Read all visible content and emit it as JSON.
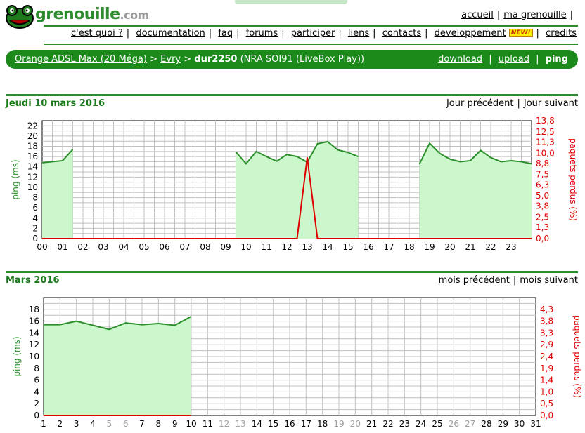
{
  "logo": {
    "name": "grenouille",
    "tld": ".com"
  },
  "top_nav": {
    "home": "accueil",
    "my_frog": "ma grenouille"
  },
  "menu": [
    "c'est quoi ?",
    "documentation",
    "faq",
    "forums",
    "participer",
    "liens",
    "contacts",
    "developpement",
    "credits"
  ],
  "new_badge": "NEW!",
  "breadcrumb": {
    "isp": "Orange ADSL Max (20 Méga)",
    "city": "Evry",
    "user": "dur2250",
    "details": "(NRA SOI91 (LiveBox Play))",
    "links": {
      "download": "download",
      "upload": "upload",
      "ping": "ping"
    }
  },
  "day_section": {
    "title": "Jeudi 10 mars 2016",
    "prev": "Jour précédent",
    "next": "Jour suivant"
  },
  "month_section": {
    "title": "Mars 2016",
    "prev": "mois précédent",
    "next": "mois suivant"
  },
  "colors": {
    "green_text": "#1b7a1b",
    "bar_green": "#1b8a1b",
    "line_green": "#2a8f2a",
    "fill_green": "#ccf7cc",
    "loss_red": "#e00000",
    "grid": "#c0c0c0"
  },
  "chart_data": [
    {
      "type": "area",
      "title": "Jeudi 10 mars 2016",
      "ylabel": "ping (ms)",
      "y2label": "paquets perdus (%)",
      "ylim": [
        0,
        23
      ],
      "y_ticks": [
        0,
        2,
        4,
        6,
        8,
        10,
        12,
        14,
        16,
        18,
        20,
        22
      ],
      "y2_ticks": [
        "0,0",
        "1,3",
        "2,5",
        "3,8",
        "5,0",
        "6,3",
        "7,5",
        "8,8",
        "10,0",
        "11,3",
        "12,5",
        "13,8"
      ],
      "x_ticks": [
        "00",
        "01",
        "02",
        "03",
        "04",
        "05",
        "06",
        "07",
        "08",
        "09",
        "10",
        "11",
        "12",
        "13",
        "14",
        "15",
        "16",
        "17",
        "18",
        "19",
        "20",
        "21",
        "22",
        "23"
      ],
      "grid": true,
      "series": [
        {
          "name": "ping (ms)",
          "segments": [
            [
              [
                0,
                14.8
              ],
              [
                0.5,
                15
              ],
              [
                1,
                15.2
              ],
              [
                1.5,
                17.4
              ]
            ],
            [
              [
                9.5,
                16.9
              ],
              [
                10,
                14.6
              ],
              [
                10.5,
                17
              ],
              [
                11,
                16
              ],
              [
                11.5,
                15.1
              ],
              [
                12,
                16.4
              ],
              [
                12.5,
                16
              ],
              [
                13,
                14.9
              ],
              [
                13.5,
                18.5
              ],
              [
                14,
                18.9
              ],
              [
                14.5,
                17.3
              ],
              [
                15,
                16.8
              ],
              [
                15.5,
                16
              ]
            ],
            [
              [
                18.5,
                14.5
              ],
              [
                19,
                18.6
              ],
              [
                19.5,
                16.6
              ],
              [
                20,
                15.5
              ],
              [
                20.5,
                15
              ],
              [
                21,
                15.2
              ],
              [
                21.5,
                17.2
              ],
              [
                22,
                15.8
              ],
              [
                22.5,
                15
              ],
              [
                23,
                15.2
              ],
              [
                23.5,
                15
              ],
              [
                24,
                14.6
              ]
            ]
          ]
        },
        {
          "name": "paquets perdus (%)",
          "points": [
            [
              0,
              0
            ],
            [
              12.5,
              0
            ],
            [
              13,
              9.5
            ],
            [
              13.5,
              0
            ],
            [
              24,
              0
            ]
          ],
          "y2lim": [
            0,
            13.8
          ]
        }
      ]
    },
    {
      "type": "area",
      "title": "Mars 2016",
      "ylabel": "ping (ms)",
      "y2label": "paquets perdus (%)",
      "ylim": [
        0,
        20
      ],
      "y_ticks": [
        0,
        2,
        4,
        6,
        8,
        10,
        12,
        14,
        16,
        18
      ],
      "y2_ticks": [
        "0,0",
        "0,5",
        "1,0",
        "1,4",
        "1,9",
        "2,4",
        "2,9",
        "3,3",
        "3,8",
        "4,3"
      ],
      "x_ticks": [
        "1",
        "2",
        "3",
        "4",
        "5",
        "6",
        "7",
        "8",
        "9",
        "10",
        "11",
        "12",
        "13",
        "14",
        "15",
        "16",
        "17",
        "18",
        "19",
        "20",
        "21",
        "22",
        "23",
        "24",
        "25",
        "26",
        "27",
        "28",
        "29",
        "30",
        "31"
      ],
      "weekend_days": [
        "5",
        "6",
        "12",
        "13",
        "19",
        "20",
        "26",
        "27"
      ],
      "grid": true,
      "series": [
        {
          "name": "ping (ms)",
          "points": [
            [
              1,
              15.4
            ],
            [
              2,
              15.4
            ],
            [
              3,
              16
            ],
            [
              4,
              15.3
            ],
            [
              5,
              14.6
            ],
            [
              6,
              15.7
            ],
            [
              7,
              15.4
            ],
            [
              8,
              15.6
            ],
            [
              9,
              15.3
            ],
            [
              10,
              16.8
            ]
          ]
        },
        {
          "name": "paquets perdus (%)",
          "points": [
            [
              1,
              0
            ],
            [
              10,
              0
            ]
          ]
        }
      ]
    }
  ]
}
